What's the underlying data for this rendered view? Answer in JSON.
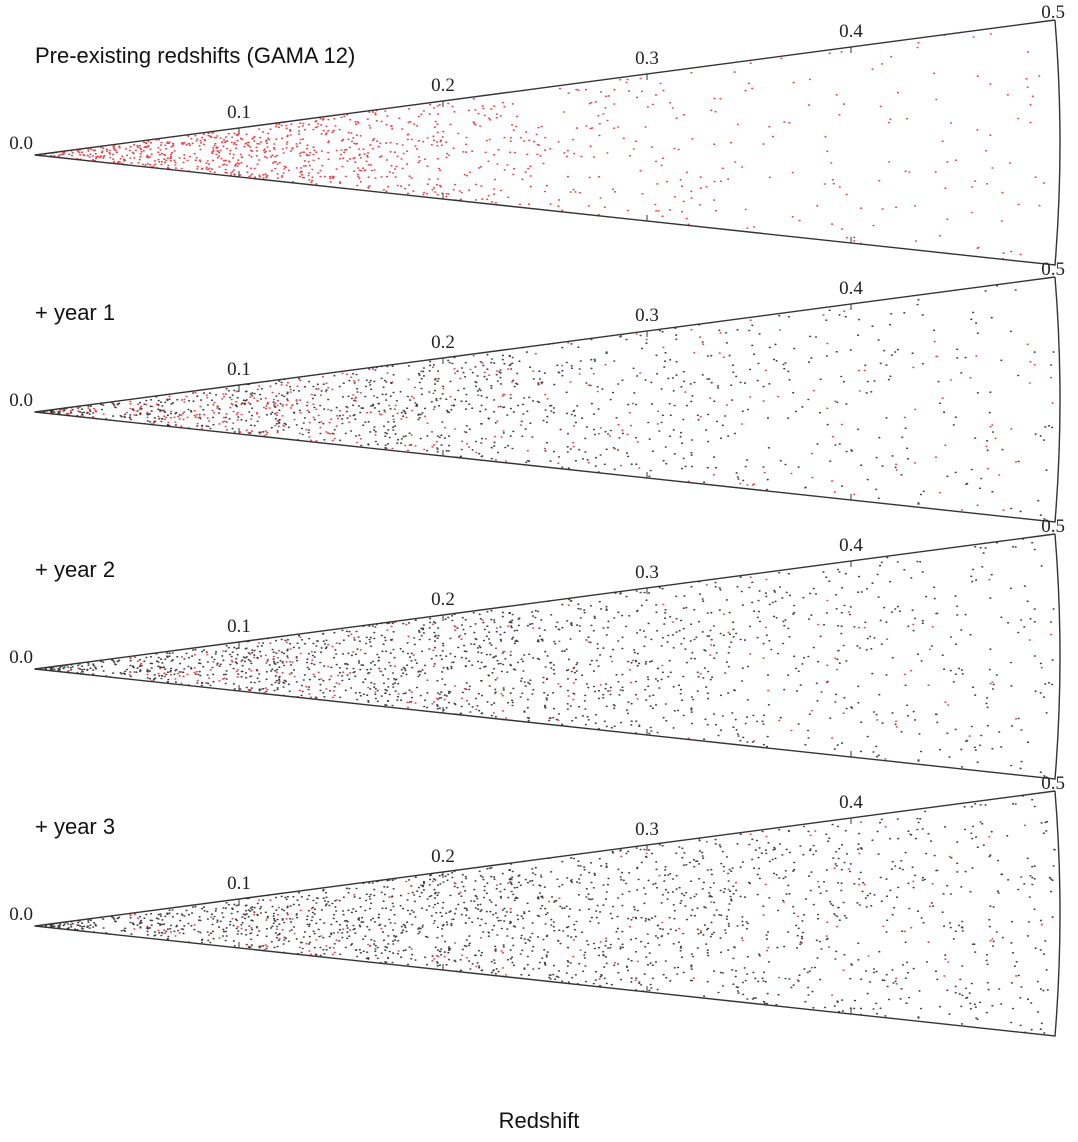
{
  "figure": {
    "range": [
      0,
      0.5
    ],
    "axis_label": "Redshift",
    "panels": [
      {
        "title": "Pre-existing redshifts (GAMA 12)",
        "ticks": [
          {
            "value": 0,
            "label": "0.0"
          },
          0.1,
          0.2,
          0.3,
          0.4,
          0.5
        ]
      },
      {
        "title": "+ year 1",
        "ticks": [
          {
            "value": 0,
            "label": "0.0"
          },
          0.1,
          0.2,
          0.3,
          0.4,
          0.5
        ]
      },
      {
        "title": "+ year 2",
        "ticks": [
          {
            "value": 0,
            "label": "0.0"
          },
          0.1,
          0.2,
          0.3,
          0.4,
          0.5
        ]
      },
      {
        "title": "+ year 3",
        "ticks": [
          {
            "value": 0,
            "label": "0.0"
          },
          0.1,
          0.2,
          0.3,
          0.4,
          0.5
        ]
      }
    ]
  }
}
